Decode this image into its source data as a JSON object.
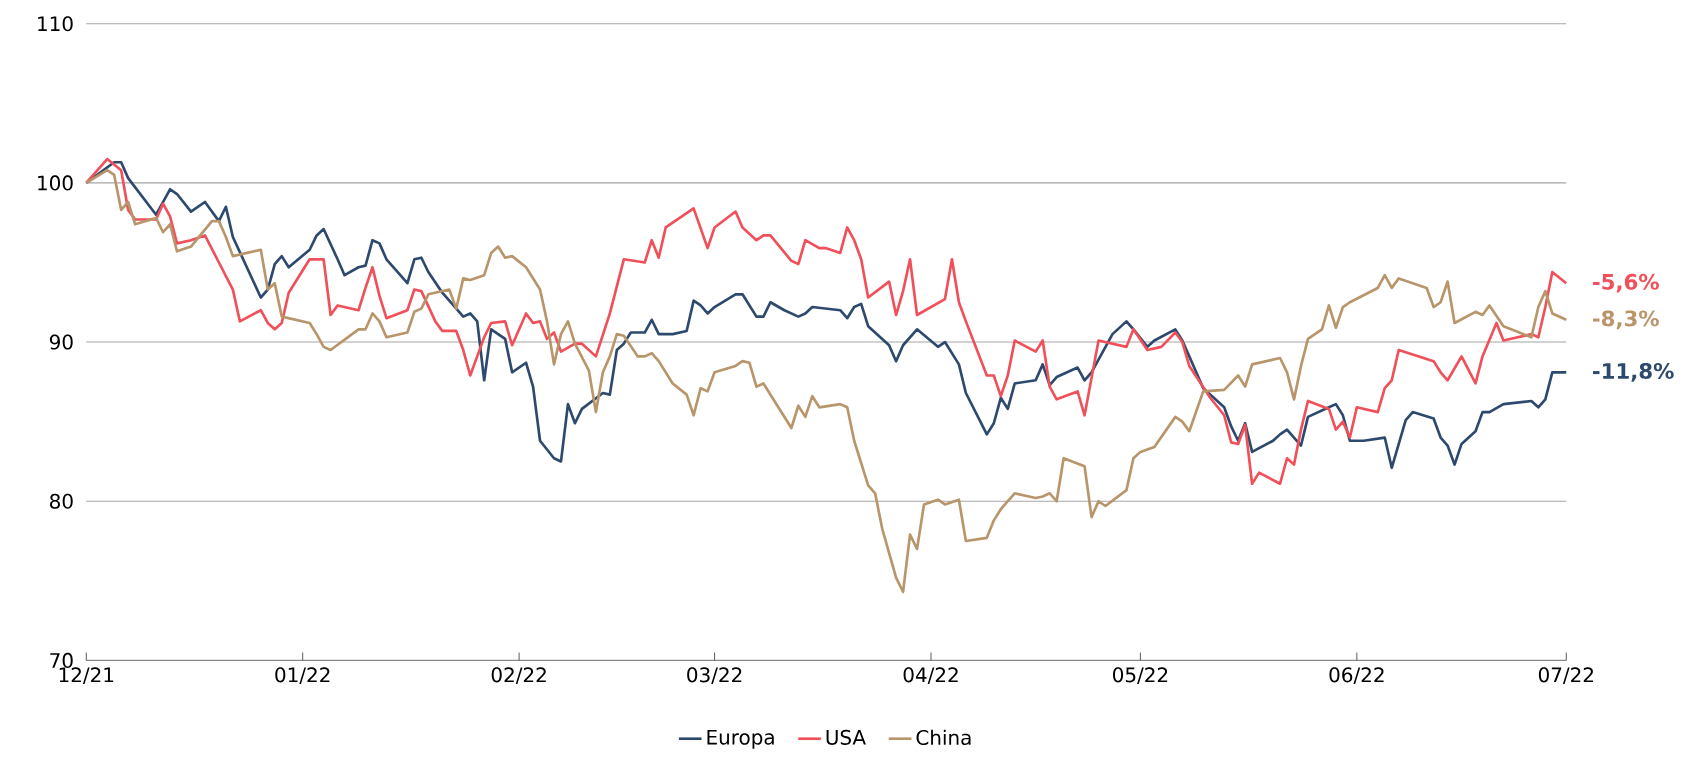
{
  "chart_data": {
    "type": "line",
    "xlim": [
      "2021-12-01",
      "2022-07-01"
    ],
    "ylim": [
      70,
      110
    ],
    "xticks": [
      {
        "value": "2021-12-01",
        "label": "12/21"
      },
      {
        "value": "2022-01-01",
        "label": "01/22"
      },
      {
        "value": "2022-02-01",
        "label": "02/22"
      },
      {
        "value": "2022-03-01",
        "label": "03/22"
      },
      {
        "value": "2022-04-01",
        "label": "04/22"
      },
      {
        "value": "2022-05-01",
        "label": "05/22"
      },
      {
        "value": "2022-06-01",
        "label": "06/22"
      },
      {
        "value": "2022-07-01",
        "label": "07/22"
      }
    ],
    "yticks": [
      70,
      80,
      90,
      100,
      110
    ],
    "grid": "y",
    "legend": "bottom",
    "marker": "none",
    "line_style": "solid",
    "series": [
      {
        "name": "Europa",
        "color": "#2d4a6e",
        "x": [
          "2021-12-01",
          "2021-12-05",
          "2021-12-06",
          "2021-12-07",
          "2021-12-11",
          "2021-12-13",
          "2021-12-14",
          "2021-12-16",
          "2021-12-18",
          "2021-12-20",
          "2021-12-21",
          "2021-12-22",
          "2021-12-26",
          "2021-12-27",
          "2021-12-28",
          "2021-12-29",
          "2021-12-30",
          "2022-01-02",
          "2022-01-03",
          "2022-01-04",
          "2022-01-06",
          "2022-01-07",
          "2022-01-09",
          "2022-01-10",
          "2022-01-11",
          "2022-01-12",
          "2022-01-13",
          "2022-01-16",
          "2022-01-17",
          "2022-01-18",
          "2022-01-19",
          "2022-01-21",
          "2022-01-24",
          "2022-01-25",
          "2022-01-26",
          "2022-01-27",
          "2022-01-28",
          "2022-01-30",
          "2022-01-31",
          "2022-02-02",
          "2022-02-03",
          "2022-02-04",
          "2022-02-06",
          "2022-02-07",
          "2022-02-08",
          "2022-02-09",
          "2022-02-10",
          "2022-02-13",
          "2022-02-14",
          "2022-02-15",
          "2022-02-16",
          "2022-02-17",
          "2022-02-19",
          "2022-02-20",
          "2022-02-21",
          "2022-02-23",
          "2022-02-25",
          "2022-02-26",
          "2022-02-27",
          "2022-02-28",
          "2022-03-01",
          "2022-03-04",
          "2022-03-05",
          "2022-03-07",
          "2022-03-08",
          "2022-03-09",
          "2022-03-11",
          "2022-03-13",
          "2022-03-14",
          "2022-03-15",
          "2022-03-19",
          "2022-03-20",
          "2022-03-21",
          "2022-03-22",
          "2022-03-23",
          "2022-03-26",
          "2022-03-27",
          "2022-03-28",
          "2022-03-30",
          "2022-04-02",
          "2022-04-03",
          "2022-04-05",
          "2022-04-06",
          "2022-04-09",
          "2022-04-10",
          "2022-04-11",
          "2022-04-12",
          "2022-04-13",
          "2022-04-16",
          "2022-04-17",
          "2022-04-18",
          "2022-04-19",
          "2022-04-22",
          "2022-04-23",
          "2022-04-24",
          "2022-04-27",
          "2022-04-29",
          "2022-04-30",
          "2022-05-02",
          "2022-05-03",
          "2022-05-06",
          "2022-05-07",
          "2022-05-08",
          "2022-05-10",
          "2022-05-13",
          "2022-05-14",
          "2022-05-15",
          "2022-05-16",
          "2022-05-17",
          "2022-05-20",
          "2022-05-21",
          "2022-05-22",
          "2022-05-23",
          "2022-05-24",
          "2022-05-25",
          "2022-05-28",
          "2022-05-29",
          "2022-05-30",
          "2022-05-31",
          "2022-06-02",
          "2022-06-05",
          "2022-06-06",
          "2022-06-08",
          "2022-06-09",
          "2022-06-12",
          "2022-06-13",
          "2022-06-14",
          "2022-06-15",
          "2022-06-16",
          "2022-06-18",
          "2022-06-19",
          "2022-06-20",
          "2022-06-22",
          "2022-06-26",
          "2022-06-27",
          "2022-06-28",
          "2022-06-29",
          "2022-07-01"
        ],
        "values": [
          100,
          101.3,
          101.3,
          100.3,
          98,
          99.6,
          99.3,
          98.2,
          98.8,
          97.6,
          98.5,
          96.6,
          92.8,
          93.3,
          94.9,
          95.4,
          94.7,
          95.8,
          96.7,
          97.1,
          95.2,
          94.2,
          94.7,
          94.8,
          96.4,
          96.2,
          95.2,
          93.7,
          95.2,
          95.3,
          94.4,
          93.1,
          91.6,
          91.8,
          91.3,
          87.6,
          90.8,
          90.2,
          88.1,
          88.7,
          87.2,
          83.8,
          82.7,
          82.5,
          86.1,
          84.9,
          85.8,
          86.8,
          86.7,
          89.5,
          89.9,
          90.6,
          90.6,
          91.4,
          90.5,
          90.5,
          90.7,
          92.6,
          92.3,
          91.8,
          92.2,
          93.0,
          93.0,
          91.6,
          91.6,
          92.5,
          92.0,
          91.6,
          91.8,
          92.2,
          92.0,
          91.5,
          92.2,
          92.4,
          91.0,
          89.8,
          88.8,
          89.8,
          90.8,
          89.7,
          90.0,
          88.6,
          86.8,
          84.2,
          84.9,
          86.5,
          85.8,
          87.4,
          87.6,
          88.6,
          87.3,
          87.8,
          88.4,
          87.6,
          88.1,
          90.5,
          91.3,
          90.8,
          89.7,
          90.1,
          90.8,
          90.1,
          89.1,
          87.1,
          85.9,
          84.7,
          83.8,
          84.9,
          83.1,
          83.8,
          84.2,
          84.5,
          84.0,
          83.5,
          85.3,
          85.9,
          86.1,
          85.4,
          83.8,
          83.8,
          84.0,
          82.1,
          85.1,
          85.6,
          85.2,
          84.0,
          83.5,
          82.3,
          83.6,
          84.4,
          85.6,
          85.6,
          86.1,
          86.3,
          85.9,
          86.4,
          88.1,
          88.1
        ]
      },
      {
        "name": "USA",
        "color": "#f0505a",
        "x": [
          "2021-12-01",
          "2021-12-04",
          "2021-12-06",
          "2021-12-07",
          "2021-12-08",
          "2021-12-11",
          "2021-12-12",
          "2021-12-13",
          "2021-12-14",
          "2021-12-16",
          "2021-12-18",
          "2021-12-20",
          "2021-12-22",
          "2021-12-23",
          "2021-12-26",
          "2021-12-27",
          "2021-12-28",
          "2021-12-29",
          "2021-12-30",
          "2022-01-02",
          "2022-01-04",
          "2022-01-05",
          "2022-01-06",
          "2022-01-09",
          "2022-01-10",
          "2022-01-11",
          "2022-01-12",
          "2022-01-13",
          "2022-01-16",
          "2022-01-17",
          "2022-01-18",
          "2022-01-20",
          "2022-01-21",
          "2022-01-23",
          "2022-01-24",
          "2022-01-25",
          "2022-01-26",
          "2022-01-27",
          "2022-01-28",
          "2022-01-30",
          "2022-01-31",
          "2022-02-02",
          "2022-02-03",
          "2022-02-04",
          "2022-02-05",
          "2022-02-06",
          "2022-02-07",
          "2022-02-09",
          "2022-02-10",
          "2022-02-12",
          "2022-02-14",
          "2022-02-15",
          "2022-02-16",
          "2022-02-19",
          "2022-02-20",
          "2022-02-21",
          "2022-02-22",
          "2022-02-26",
          "2022-02-28",
          "2022-03-01",
          "2022-03-04",
          "2022-03-05",
          "2022-03-07",
          "2022-03-08",
          "2022-03-09",
          "2022-03-12",
          "2022-03-13",
          "2022-03-14",
          "2022-03-16",
          "2022-03-17",
          "2022-03-19",
          "2022-03-20",
          "2022-03-21",
          "2022-03-22",
          "2022-03-23",
          "2022-03-26",
          "2022-03-27",
          "2022-03-28",
          "2022-03-29",
          "2022-03-30",
          "2022-04-03",
          "2022-04-04",
          "2022-04-05",
          "2022-04-06",
          "2022-04-09",
          "2022-04-10",
          "2022-04-11",
          "2022-04-12",
          "2022-04-13",
          "2022-04-16",
          "2022-04-17",
          "2022-04-18",
          "2022-04-19",
          "2022-04-22",
          "2022-04-23",
          "2022-04-25",
          "2022-04-29",
          "2022-04-30",
          "2022-05-02",
          "2022-05-04",
          "2022-05-06",
          "2022-05-07",
          "2022-05-08",
          "2022-05-11",
          "2022-05-13",
          "2022-05-14",
          "2022-05-15",
          "2022-05-16",
          "2022-05-17",
          "2022-05-18",
          "2022-05-21",
          "2022-05-22",
          "2022-05-23",
          "2022-05-24",
          "2022-05-25",
          "2022-05-28",
          "2022-05-29",
          "2022-05-30",
          "2022-05-31",
          "2022-06-01",
          "2022-06-04",
          "2022-06-05",
          "2022-06-06",
          "2022-06-07",
          "2022-06-12",
          "2022-06-13",
          "2022-06-14",
          "2022-06-16",
          "2022-06-18",
          "2022-06-19",
          "2022-06-21",
          "2022-06-22",
          "2022-06-26",
          "2022-06-27",
          "2022-06-28",
          "2022-06-29",
          "2022-07-01"
        ],
        "values": [
          100,
          101.5,
          100.8,
          98.3,
          97.7,
          97.7,
          98.7,
          97.9,
          96.2,
          96.4,
          96.7,
          95.0,
          93.3,
          91.3,
          92.0,
          91.2,
          90.8,
          91.2,
          93.1,
          95.2,
          95.2,
          91.7,
          92.3,
          92.0,
          93.4,
          94.7,
          92.9,
          91.5,
          92.0,
          93.3,
          93.2,
          91.3,
          90.7,
          90.7,
          89.5,
          87.9,
          89.1,
          90.3,
          91.2,
          91.3,
          89.8,
          91.8,
          91.2,
          91.3,
          90.2,
          90.6,
          89.4,
          89.9,
          89.9,
          89.1,
          91.8,
          93.5,
          95.2,
          95.0,
          96.4,
          95.3,
          97.2,
          98.4,
          95.9,
          97.2,
          98.2,
          97.2,
          96.4,
          96.7,
          96.7,
          95.1,
          94.9,
          96.4,
          95.9,
          95.9,
          95.6,
          97.2,
          96.4,
          95.2,
          92.8,
          93.8,
          91.7,
          93.2,
          95.2,
          91.7,
          92.7,
          95.2,
          92.5,
          91.3,
          87.9,
          87.9,
          86.6,
          87.9,
          90.1,
          89.4,
          90.1,
          87.2,
          86.4,
          86.9,
          85.4,
          90.1,
          89.7,
          90.8,
          89.5,
          89.7,
          90.6,
          90.0,
          88.5,
          86.5,
          85.4,
          83.7,
          83.6,
          84.8,
          81.1,
          81.8,
          81.1,
          82.7,
          82.3,
          84.5,
          86.3,
          85.8,
          84.5,
          85.0,
          84.0,
          85.9,
          85.6,
          87.1,
          87.6,
          89.5,
          88.8,
          88.1,
          87.6,
          89.1,
          87.4,
          89.1,
          91.2,
          90.1,
          90.5,
          90.3,
          92.2,
          94.4,
          93.7
        ]
      },
      {
        "name": "China",
        "color": "#b8956a",
        "x": [
          "2021-12-01",
          "2021-12-04",
          "2021-12-05",
          "2021-12-06",
          "2021-12-07",
          "2021-12-08",
          "2021-12-11",
          "2021-12-12",
          "2021-12-13",
          "2021-12-14",
          "2021-12-16",
          "2021-12-19",
          "2021-12-20",
          "2021-12-21",
          "2021-12-22",
          "2021-12-26",
          "2021-12-27",
          "2021-12-28",
          "2021-12-29",
          "2022-01-02",
          "2022-01-03",
          "2022-01-04",
          "2022-01-05",
          "2022-01-09",
          "2022-01-10",
          "2022-01-11",
          "2022-01-12",
          "2022-01-13",
          "2022-01-16",
          "2022-01-17",
          "2022-01-18",
          "2022-01-19",
          "2022-01-22",
          "2022-01-23",
          "2022-01-24",
          "2022-01-25",
          "2022-01-27",
          "2022-01-28",
          "2022-01-29",
          "2022-01-30",
          "2022-01-31",
          "2022-02-02",
          "2022-02-04",
          "2022-02-05",
          "2022-02-06",
          "2022-02-07",
          "2022-02-08",
          "2022-02-09",
          "2022-02-11",
          "2022-02-12",
          "2022-02-13",
          "2022-02-14",
          "2022-02-15",
          "2022-02-16",
          "2022-02-18",
          "2022-02-19",
          "2022-02-20",
          "2022-02-21",
          "2022-02-23",
          "2022-02-25",
          "2022-02-26",
          "2022-02-27",
          "2022-02-28",
          "2022-03-01",
          "2022-03-04",
          "2022-03-05",
          "2022-03-06",
          "2022-03-07",
          "2022-03-08",
          "2022-03-12",
          "2022-03-13",
          "2022-03-14",
          "2022-03-15",
          "2022-03-16",
          "2022-03-19",
          "2022-03-20",
          "2022-03-21",
          "2022-03-23",
          "2022-03-24",
          "2022-03-25",
          "2022-03-27",
          "2022-03-28",
          "2022-03-29",
          "2022-03-30",
          "2022-03-31",
          "2022-04-02",
          "2022-04-03",
          "2022-04-05",
          "2022-04-06",
          "2022-04-09",
          "2022-04-10",
          "2022-04-11",
          "2022-04-12",
          "2022-04-13",
          "2022-04-16",
          "2022-04-17",
          "2022-04-18",
          "2022-04-19",
          "2022-04-20",
          "2022-04-23",
          "2022-04-24",
          "2022-04-25",
          "2022-04-26",
          "2022-04-29",
          "2022-04-30",
          "2022-05-01",
          "2022-05-03",
          "2022-05-06",
          "2022-05-07",
          "2022-05-08",
          "2022-05-10",
          "2022-05-13",
          "2022-05-15",
          "2022-05-16",
          "2022-05-17",
          "2022-05-21",
          "2022-05-22",
          "2022-05-23",
          "2022-05-24",
          "2022-05-25",
          "2022-05-27",
          "2022-05-28",
          "2022-05-29",
          "2022-05-30",
          "2022-05-31",
          "2022-06-04",
          "2022-06-05",
          "2022-06-06",
          "2022-06-07",
          "2022-06-11",
          "2022-06-12",
          "2022-06-13",
          "2022-06-14",
          "2022-06-15",
          "2022-06-18",
          "2022-06-19",
          "2022-06-20",
          "2022-06-22",
          "2022-06-26",
          "2022-06-27",
          "2022-06-28",
          "2022-06-29",
          "2022-07-01"
        ],
        "values": [
          100,
          100.8,
          100.5,
          98.3,
          98.8,
          97.4,
          97.8,
          96.9,
          97.4,
          95.7,
          96.0,
          97.6,
          97.6,
          96.6,
          95.4,
          95.8,
          93.3,
          93.7,
          91.6,
          91.2,
          90.5,
          89.7,
          89.5,
          90.8,
          90.8,
          91.8,
          91.3,
          90.3,
          90.6,
          91.9,
          92.1,
          93.0,
          93.3,
          92.1,
          94.0,
          93.9,
          94.2,
          95.6,
          96.0,
          95.3,
          95.4,
          94.7,
          93.3,
          91.3,
          88.6,
          90.5,
          91.3,
          89.9,
          88.2,
          85.6,
          88.1,
          89.1,
          90.5,
          90.4,
          89.1,
          89.1,
          89.3,
          88.8,
          87.4,
          86.7,
          85.4,
          87.1,
          86.9,
          88.1,
          88.5,
          88.8,
          88.7,
          87.2,
          87.4,
          84.6,
          86.0,
          85.3,
          86.6,
          85.9,
          86.1,
          85.9,
          83.8,
          81.0,
          80.5,
          78.3,
          75.2,
          74.3,
          77.9,
          77.0,
          79.8,
          80.1,
          79.8,
          80.1,
          77.5,
          77.7,
          78.8,
          79.5,
          80.0,
          80.5,
          80.2,
          80.3,
          80.5,
          80.0,
          82.7,
          82.2,
          79.0,
          80.0,
          79.7,
          80.7,
          82.7,
          83.1,
          83.4,
          85.3,
          85.0,
          84.4,
          86.9,
          87.0,
          87.9,
          87.2,
          88.6,
          89.0,
          88.1,
          86.4,
          88.5,
          90.2,
          90.8,
          92.3,
          90.9,
          92.2,
          92.5,
          93.4,
          94.2,
          93.4,
          94.0,
          93.4,
          92.2,
          92.5,
          93.8,
          91.2,
          91.9,
          91.7,
          92.3,
          91.0,
          90.3,
          92.2,
          93.2,
          91.8,
          91.4
        ]
      }
    ],
    "annotations": [
      "-11,8%",
      "-5,6%",
      "-8,3%"
    ]
  }
}
